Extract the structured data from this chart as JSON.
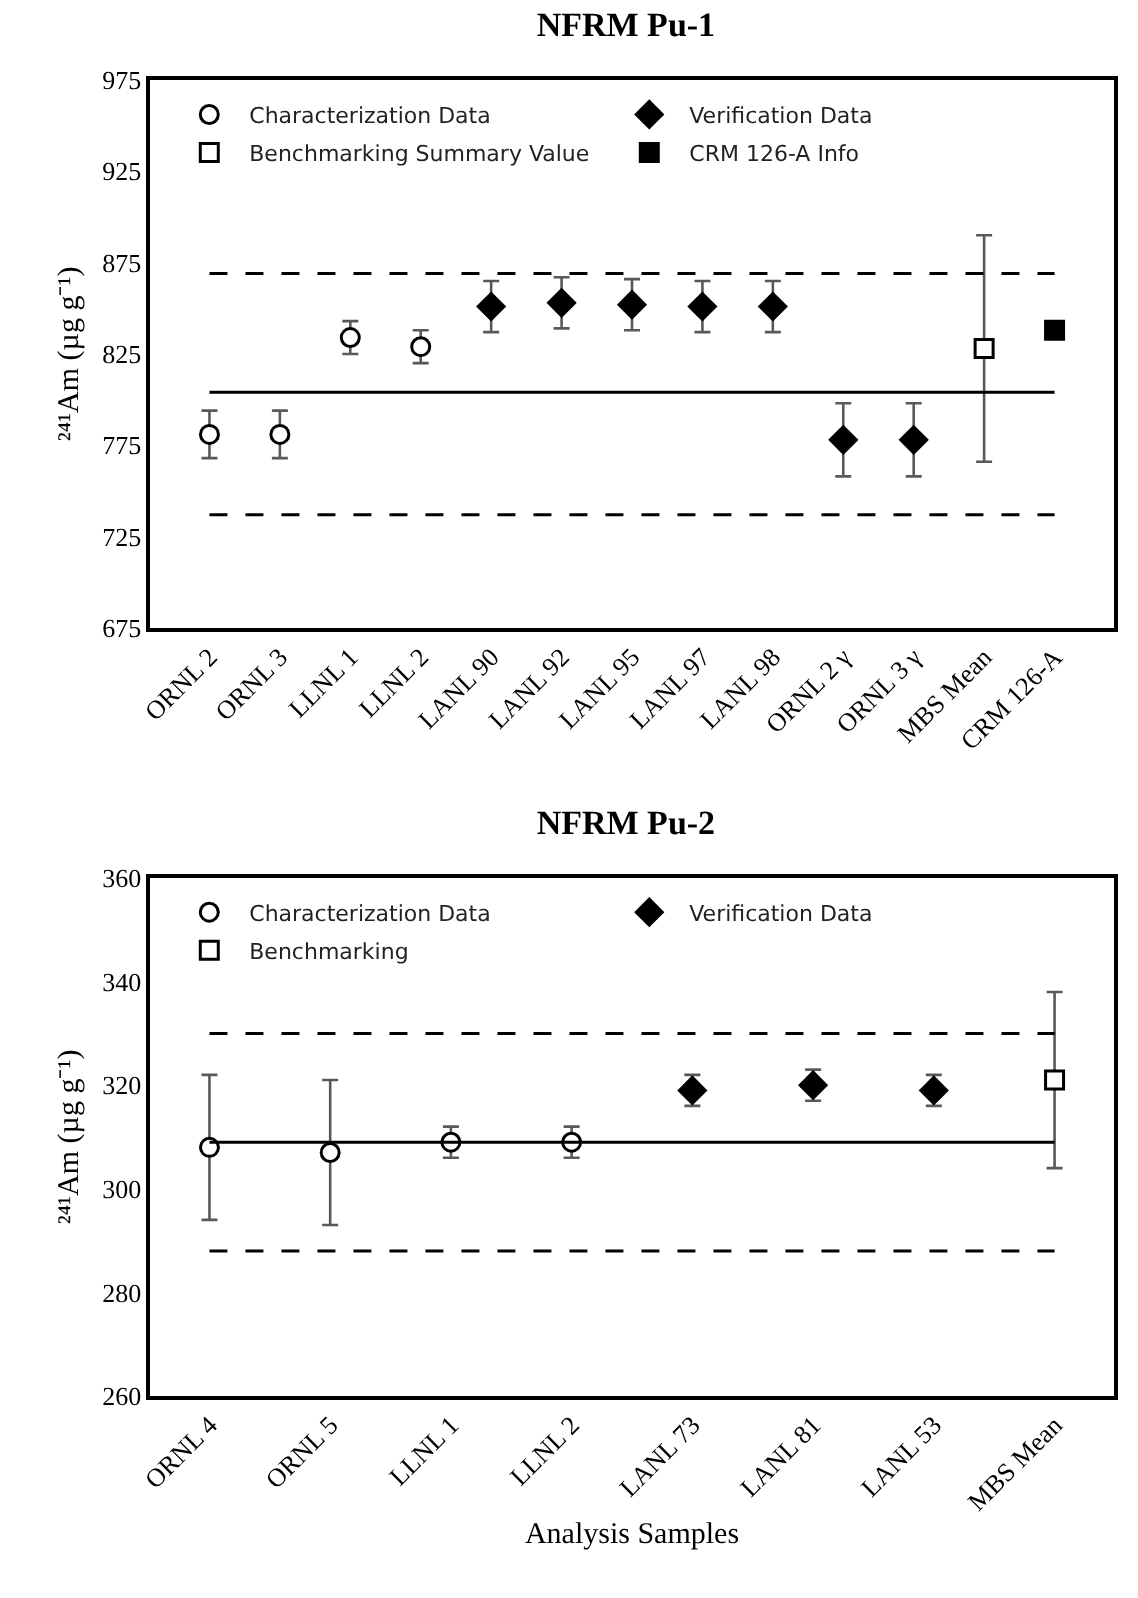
{
  "chart_data": [
    {
      "type": "scatter",
      "title": "NFRM Pu-1",
      "ylabel": "²⁴¹Am (µg g⁻¹)",
      "categories": [
        "ORNL 2",
        "ORNL 3",
        "LLNL 1",
        "LLNL 2",
        "LANL 90",
        "LANL 92",
        "LANL 95",
        "LANL 97",
        "LANL 98",
        "ORNL 2 γ",
        "ORNL 3 γ",
        "MBS Mean",
        "CRM 126-A"
      ],
      "series": [
        {
          "name": "Characterization Data",
          "color": "#ffffff",
          "marker": "circle",
          "x": [
            "ORNL 2",
            "ORNL 3",
            "LLNL 1",
            "LLNL 2"
          ],
          "values": [
            781,
            781,
            834,
            829
          ],
          "errors": [
            13,
            13,
            9,
            9
          ]
        },
        {
          "name": "Verification Data",
          "color": "#000000",
          "marker": "diamond",
          "x": [
            "LANL 90",
            "LANL 92",
            "LANL 95",
            "LANL 97",
            "LANL 98",
            "ORNL 2 γ",
            "ORNL 3 γ"
          ],
          "values": [
            851,
            853,
            852,
            851,
            851,
            778,
            778
          ],
          "errors": [
            14,
            14,
            14,
            14,
            14,
            20,
            20
          ]
        },
        {
          "name": "Benchmarking Summary Value",
          "color": "#ffffff",
          "marker": "square",
          "x": [
            "MBS Mean"
          ],
          "values": [
            828
          ],
          "errors": [
            62
          ]
        },
        {
          "name": "CRM 126-A Info",
          "color": "#000000",
          "marker": "square",
          "x": [
            "CRM 126-A"
          ],
          "values": [
            838
          ]
        }
      ],
      "ref_lines": [
        {
          "axis": "y",
          "value": 804,
          "line_style": "solid"
        },
        {
          "axis": "y",
          "value": 869,
          "line_style": "dashed"
        },
        {
          "axis": "y",
          "value": 737,
          "line_style": "dashed"
        }
      ],
      "ylim": [
        675,
        975
      ],
      "yticks": [
        675,
        725,
        775,
        825,
        875,
        925,
        975
      ],
      "grid": false,
      "legend": "top"
    },
    {
      "type": "scatter",
      "title": "NFRM Pu-2",
      "ylabel": "²⁴¹Am (µg g⁻¹)",
      "xlabel": "Analysis Samples",
      "categories": [
        "ORNL 4",
        "ORNL 5",
        "LLNL 1",
        "LLNL 2",
        "LANL 73",
        "LANL 81",
        "LANL 53",
        "MBS Mean"
      ],
      "series": [
        {
          "name": "Characterization Data",
          "color": "#ffffff",
          "marker": "circle",
          "x": [
            "ORNL 4",
            "ORNL 5",
            "LLNL 1",
            "LLNL 2"
          ],
          "values": [
            308,
            307,
            309,
            309
          ],
          "errors": [
            14,
            14,
            3,
            3
          ]
        },
        {
          "name": "Verification Data",
          "color": "#000000",
          "marker": "diamond",
          "x": [
            "LANL 73",
            "LANL 81",
            "LANL 53"
          ],
          "values": [
            319,
            320,
            319
          ],
          "errors": [
            3,
            3,
            3
          ]
        },
        {
          "name": "Benchmarking",
          "color": "#ffffff",
          "marker": "square",
          "x": [
            "MBS Mean"
          ],
          "values": [
            321
          ],
          "errors": [
            17
          ]
        }
      ],
      "ref_lines": [
        {
          "axis": "y",
          "value": 309,
          "line_style": "solid"
        },
        {
          "axis": "y",
          "value": 330,
          "line_style": "dashed"
        },
        {
          "axis": "y",
          "value": 288,
          "line_style": "dashed"
        }
      ],
      "ylim": [
        260,
        360
      ],
      "yticks": [
        260,
        280,
        300,
        320,
        340,
        360
      ],
      "grid": false,
      "legend": "top"
    }
  ]
}
